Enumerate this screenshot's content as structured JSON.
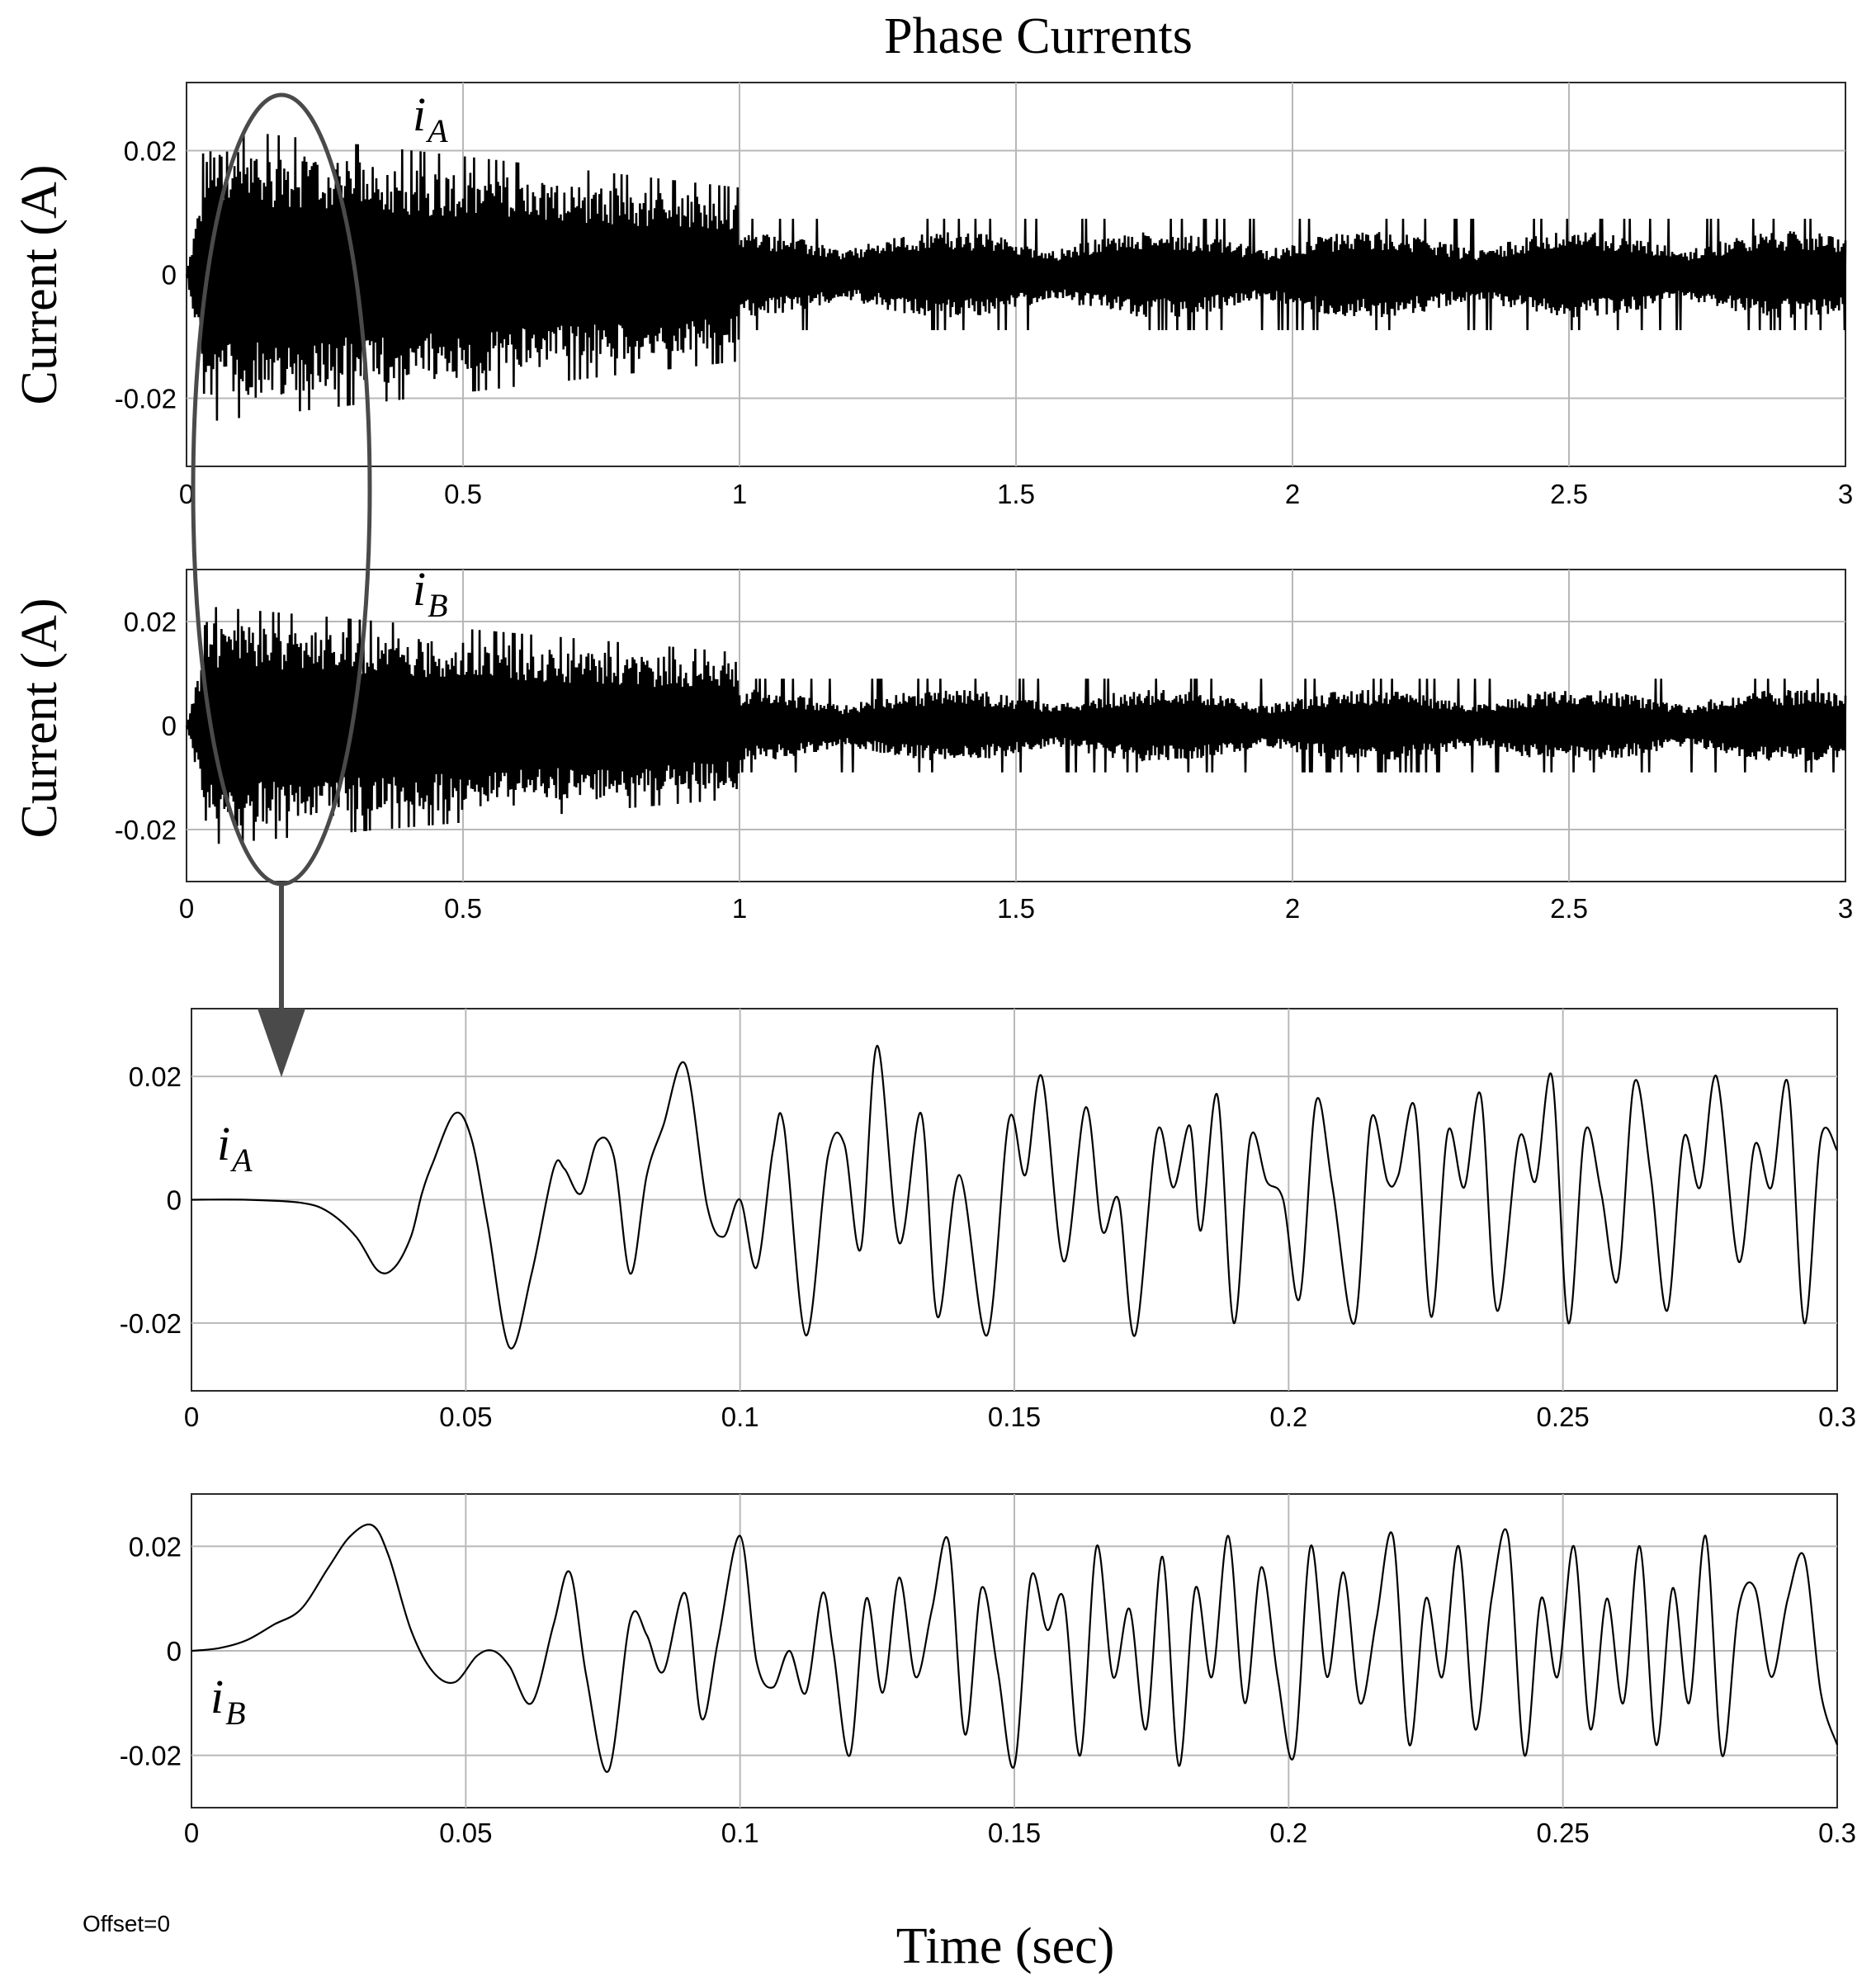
{
  "figure": {
    "title": "Phase Currents",
    "xlabel": "Time (sec)",
    "offset_text": "Offset=0"
  },
  "chart_data": [
    {
      "type": "line",
      "panel": "top",
      "series": [
        {
          "name": "iA",
          "label_main": "i",
          "label_sub": "A"
        }
      ],
      "x_range": [
        0,
        3
      ],
      "ylim": [
        -0.031,
        0.031
      ],
      "xticks": [
        0,
        0.5,
        1,
        1.5,
        2,
        2.5,
        3
      ],
      "xtick_labels": [
        "0",
        "0.5",
        "1",
        "1.5",
        "2",
        "2.5",
        "3"
      ],
      "yticks": [
        0.02,
        0,
        -0.02
      ],
      "ytick_labels": [
        "0.02",
        "0",
        "-0.02"
      ],
      "ylabel": "Current (A)",
      "grid": true,
      "envelope": {
        "startup_peak": 0.025,
        "pre_step_amplitude": 0.012,
        "step_time": 1.0,
        "steady_amplitude": 0.007,
        "steady_spike": 0.009
      }
    },
    {
      "type": "line",
      "panel": "second",
      "series": [
        {
          "name": "iB",
          "label_main": "i",
          "label_sub": "B"
        }
      ],
      "x_range": [
        0,
        3
      ],
      "ylim": [
        -0.03,
        0.03
      ],
      "xticks": [
        0,
        0.5,
        1,
        1.5,
        2,
        2.5,
        3
      ],
      "xtick_labels": [
        "0",
        "0.5",
        "1",
        "1.5",
        "2",
        "2.5",
        "3"
      ],
      "yticks": [
        0.02,
        0,
        -0.02
      ],
      "ytick_labels": [
        "0.02",
        "0",
        "-0.02"
      ],
      "ylabel": "Current (A)",
      "grid": true,
      "envelope": {
        "startup_peak": 0.024,
        "pre_step_amplitude": 0.012,
        "step_time": 1.0,
        "steady_amplitude": 0.007,
        "steady_spike": 0.009
      }
    },
    {
      "type": "line",
      "panel": "zoom-a",
      "series": [
        {
          "name": "iA",
          "label_main": "i",
          "label_sub": "A"
        }
      ],
      "x_range": [
        0,
        0.3
      ],
      "ylim": [
        -0.031,
        0.031
      ],
      "xticks": [
        0,
        0.05,
        0.1,
        0.15,
        0.2,
        0.25,
        0.3
      ],
      "xtick_labels": [
        "0",
        "0.05",
        "0.1",
        "0.15",
        "0.2",
        "0.25",
        "0.3"
      ],
      "yticks": [
        0.02,
        0,
        -0.02
      ],
      "ytick_labels": [
        "0.02",
        "0",
        "-0.02"
      ],
      "grid": true,
      "x": [
        0,
        0.01,
        0.02,
        0.025,
        0.03,
        0.034,
        0.037,
        0.04,
        0.042,
        0.044,
        0.048,
        0.051,
        0.054,
        0.058,
        0.062,
        0.066,
        0.068,
        0.071,
        0.074,
        0.077,
        0.08,
        0.083,
        0.086,
        0.09,
        0.094,
        0.097,
        0.1,
        0.103,
        0.106,
        0.108,
        0.112,
        0.116,
        0.119,
        0.122,
        0.125,
        0.129,
        0.133,
        0.136,
        0.14,
        0.145,
        0.149,
        0.152,
        0.155,
        0.159,
        0.163,
        0.166,
        0.169,
        0.172,
        0.176,
        0.179,
        0.182,
        0.184,
        0.187,
        0.19,
        0.193,
        0.196,
        0.199,
        0.202,
        0.205,
        0.208,
        0.212,
        0.215,
        0.218,
        0.22,
        0.223,
        0.226,
        0.229,
        0.232,
        0.235,
        0.238,
        0.242,
        0.245,
        0.248,
        0.251,
        0.254,
        0.257,
        0.26,
        0.263,
        0.266,
        0.269,
        0.272,
        0.275,
        0.278,
        0.282,
        0.285,
        0.288,
        0.291,
        0.294,
        0.297,
        0.3
      ],
      "y": [
        0,
        0,
        -0.0005,
        -0.002,
        -0.006,
        -0.0115,
        -0.011,
        -0.006,
        0.001,
        0.006,
        0.014,
        0.01,
        -0.004,
        -0.024,
        -0.012,
        0.005,
        0.005,
        0.001,
        0.0095,
        0.007,
        -0.012,
        0.004,
        0.012,
        0.022,
        -0.001,
        -0.006,
        0.0,
        -0.011,
        0.008,
        0.012,
        -0.022,
        0.007,
        0.009,
        -0.008,
        0.025,
        -0.007,
        0.014,
        -0.019,
        0.004,
        -0.022,
        0.013,
        0.004,
        0.02,
        -0.01,
        0.015,
        -0.005,
        0.0,
        -0.022,
        0.011,
        0.002,
        0.012,
        -0.005,
        0.017,
        -0.02,
        0.01,
        0.003,
        0.0,
        -0.016,
        0.016,
        0.002,
        -0.02,
        0.013,
        0.003,
        0.004,
        0.015,
        -0.019,
        0.011,
        0.002,
        0.017,
        -0.018,
        0.01,
        0.003,
        0.02,
        -0.02,
        0.011,
        0.001,
        -0.013,
        0.019,
        0.004,
        -0.018,
        0.01,
        0.002,
        0.02,
        -0.01,
        0.009,
        0.002,
        0.019,
        -0.02,
        0.01,
        0.008
      ]
    },
    {
      "type": "line",
      "panel": "zoom-b",
      "series": [
        {
          "name": "iB",
          "label_main": "i",
          "label_sub": "B"
        }
      ],
      "x_range": [
        0,
        0.3
      ],
      "ylim": [
        -0.03,
        0.03
      ],
      "xticks": [
        0,
        0.05,
        0.1,
        0.15,
        0.2,
        0.25,
        0.3
      ],
      "xtick_labels": [
        "0",
        "0.05",
        "0.1",
        "0.15",
        "0.2",
        "0.25",
        "0.3"
      ],
      "yticks": [
        0.02,
        0,
        -0.02
      ],
      "ytick_labels": [
        "0.02",
        "0",
        "-0.02"
      ],
      "grid": true,
      "x": [
        0,
        0.005,
        0.01,
        0.015,
        0.02,
        0.025,
        0.029,
        0.033,
        0.036,
        0.04,
        0.044,
        0.048,
        0.052,
        0.055,
        0.058,
        0.062,
        0.066,
        0.069,
        0.072,
        0.076,
        0.08,
        0.083,
        0.086,
        0.09,
        0.093,
        0.096,
        0.1,
        0.103,
        0.106,
        0.109,
        0.112,
        0.115,
        0.117,
        0.12,
        0.123,
        0.126,
        0.129,
        0.132,
        0.135,
        0.138,
        0.141,
        0.144,
        0.147,
        0.15,
        0.153,
        0.156,
        0.159,
        0.162,
        0.165,
        0.168,
        0.171,
        0.174,
        0.177,
        0.18,
        0.183,
        0.186,
        0.189,
        0.192,
        0.195,
        0.198,
        0.201,
        0.204,
        0.207,
        0.21,
        0.213,
        0.216,
        0.219,
        0.222,
        0.225,
        0.228,
        0.231,
        0.234,
        0.237,
        0.24,
        0.243,
        0.246,
        0.249,
        0.252,
        0.255,
        0.258,
        0.261,
        0.264,
        0.267,
        0.27,
        0.273,
        0.276,
        0.279,
        0.282,
        0.285,
        0.288,
        0.291,
        0.294,
        0.297,
        0.3
      ],
      "y": [
        0,
        0.0005,
        0.002,
        0.005,
        0.008,
        0.016,
        0.022,
        0.024,
        0.018,
        0.004,
        -0.004,
        -0.006,
        -0.001,
        0.0,
        -0.003,
        -0.01,
        0.005,
        0.015,
        -0.005,
        -0.023,
        0.006,
        0.003,
        -0.004,
        0.011,
        -0.013,
        0.002,
        0.022,
        -0.002,
        -0.007,
        0.0,
        -0.008,
        0.011,
        0.0,
        -0.02,
        0.01,
        -0.008,
        0.014,
        -0.005,
        0.008,
        0.021,
        -0.016,
        0.012,
        -0.004,
        -0.022,
        0.014,
        0.004,
        0.01,
        -0.02,
        0.02,
        -0.005,
        0.008,
        -0.015,
        0.018,
        -0.022,
        0.012,
        -0.005,
        0.022,
        -0.01,
        0.016,
        -0.005,
        -0.02,
        0.02,
        -0.005,
        0.015,
        -0.01,
        0.006,
        0.022,
        -0.018,
        0.01,
        -0.005,
        0.02,
        -0.015,
        0.01,
        0.022,
        -0.02,
        0.01,
        -0.005,
        0.02,
        -0.015,
        0.01,
        -0.01,
        0.02,
        -0.018,
        0.012,
        -0.01,
        0.022,
        -0.02,
        0.008,
        0.012,
        -0.005,
        0.01,
        0.018,
        -0.008,
        -0.018
      ]
    }
  ]
}
